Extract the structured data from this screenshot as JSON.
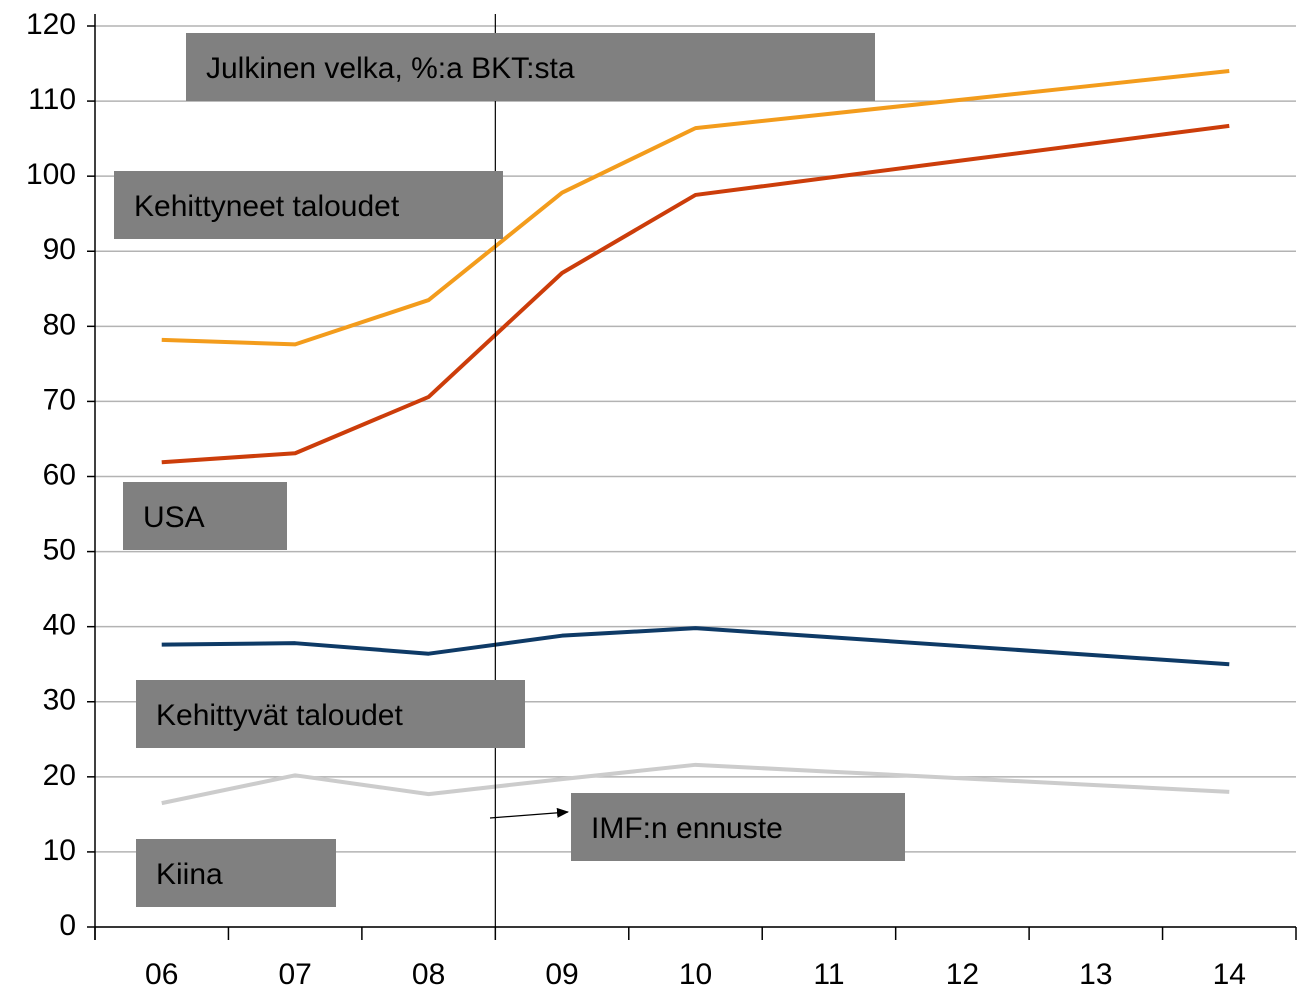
{
  "chart_data": {
    "type": "line",
    "title": "Julkinen velka, %:a BKT:sta",
    "annotation": "IMF:n ennuste",
    "categories": [
      "06",
      "07",
      "08",
      "09",
      "10",
      "11",
      "12",
      "13",
      "14"
    ],
    "series": [
      {
        "name": "Kehittyneet taloudet",
        "color": "#f39c1c",
        "values": [
          78.2,
          77.6,
          83.5,
          97.8,
          106.4,
          108.3,
          110.2,
          112.1,
          114.0
        ]
      },
      {
        "name": "USA",
        "color": "#cc3d0a",
        "values": [
          61.9,
          63.1,
          70.6,
          87.1,
          97.5,
          99.8,
          102.1,
          104.4,
          106.7
        ]
      },
      {
        "name": "Kehittyvät taloudet",
        "color": "#0e3a66",
        "values": [
          37.6,
          37.8,
          36.4,
          38.8,
          39.8,
          38.6,
          37.4,
          36.2,
          35.0
        ]
      },
      {
        "name": "Kiina",
        "color": "#cccccc",
        "values": [
          16.5,
          20.2,
          17.7,
          19.7,
          21.6,
          20.7,
          19.8,
          18.9,
          18.0
        ]
      }
    ],
    "ylim": [
      0,
      120
    ],
    "yticks": [
      0,
      10,
      20,
      30,
      40,
      50,
      60,
      70,
      80,
      90,
      100,
      110,
      120
    ],
    "grid": true
  }
}
